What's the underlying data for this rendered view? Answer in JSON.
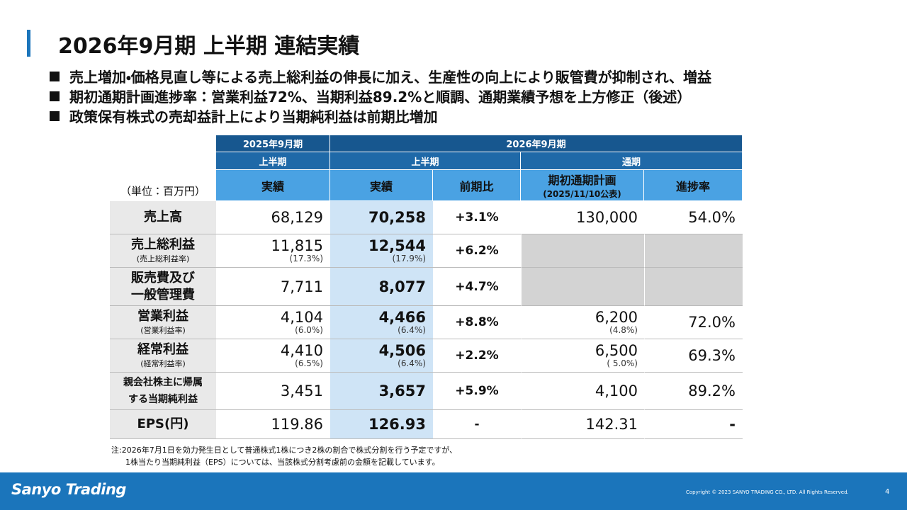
{
  "header": {
    "title": "2026年9月期 上半期 連結実績"
  },
  "bullets": [
    "売上増加・価格見直し等による売上総利益の伸長に加え、生産性の向上により販管費が抑制され、増益",
    "期初通期計画進捗率：営業利益72%、当期利益89.2%と順調、通期業績予想を上方修正（後述）",
    "政策保有株式の売却益計上により当期純利益は前期比増加"
  ],
  "table": {
    "unit": "（単位：百万円）",
    "header_row1": [
      "2025年9月期",
      "2026年9月期"
    ],
    "header_row2": [
      "上半期",
      "上半期",
      "通期"
    ],
    "header_row3": [
      {
        "lines": [
          "実績"
        ]
      },
      {
        "lines": [
          "実績"
        ]
      },
      {
        "lines": [
          "前期比"
        ]
      },
      {
        "lines": [
          "期初通期計画",
          "(2025/11/10公表)"
        ]
      },
      {
        "lines": [
          "進捗率"
        ]
      }
    ],
    "rows": [
      {
        "label": {
          "lines": [
            "売上高"
          ]
        },
        "cells": [
          {
            "main": "68,129"
          },
          {
            "main": "70,258"
          },
          {
            "main": "+3.1%"
          },
          {
            "main": "130,000"
          },
          {
            "main": "54.0%"
          }
        ]
      },
      {
        "label": {
          "lines": [
            "売上総利益"
          ],
          "sub": "(売上総利益率)"
        },
        "cells": [
          {
            "main": "11,815",
            "sub": "(17.3%)"
          },
          {
            "main": "12,544",
            "sub": "(17.9%)"
          },
          {
            "main": "+6.2%"
          },
          null,
          null
        ]
      },
      {
        "label": {
          "lines": [
            "販売費及び",
            "一般管理費"
          ]
        },
        "cells": [
          {
            "main": "7,711"
          },
          {
            "main": "8,077"
          },
          {
            "main": "+4.7%"
          },
          null,
          null
        ]
      },
      {
        "label": {
          "lines": [
            "営業利益"
          ],
          "sub": "(営業利益率)"
        },
        "cells": [
          {
            "main": "4,104",
            "sub": "(6.0%)"
          },
          {
            "main": "4,466",
            "sub": "(6.4%)"
          },
          {
            "main": "+8.8%"
          },
          {
            "main": "6,200",
            "sub": "(4.8%)"
          },
          {
            "main": "72.0%"
          }
        ]
      },
      {
        "label": {
          "lines": [
            "経常利益"
          ],
          "sub": "(経常利益率)"
        },
        "cells": [
          {
            "main": "4,410",
            "sub": "(6.5%)"
          },
          {
            "main": "4,506",
            "sub": "(6.4%)"
          },
          {
            "main": "+2.2%"
          },
          {
            "main": "6,500",
            "sub": "( 5.0%)"
          },
          {
            "main": "69.3%"
          }
        ]
      },
      {
        "label": {
          "lines": [
            "親会社株主に帰属",
            "する当期純利益"
          ]
        },
        "cells": [
          {
            "main": "3,451"
          },
          {
            "main": "3,657"
          },
          {
            "main": "+5.9%"
          },
          {
            "main": "4,100"
          },
          {
            "main": "89.2%"
          }
        ]
      },
      {
        "label": {
          "lines": [
            "EPS(円)"
          ]
        },
        "cells": [
          {
            "main": "119.86"
          },
          {
            "main": "126.93"
          },
          {
            "main": "-"
          },
          {
            "main": "142.31"
          },
          {
            "main": "-"
          }
        ]
      }
    ]
  },
  "note": [
    "注:2026年7月1日を効力発生日として普通株式1株につき2株の割合で株式分割を行う予定ですが、",
    "1株当たり当期純利益（EPS）については、当該株式分割考慮前の金額を記載しています。"
  ],
  "footer": {
    "logo": "Sanyo Trading",
    "copyright": "Copyright © 2023 SANYO TRADING CO., LTD. All Rights Reserved.",
    "page": "4"
  }
}
